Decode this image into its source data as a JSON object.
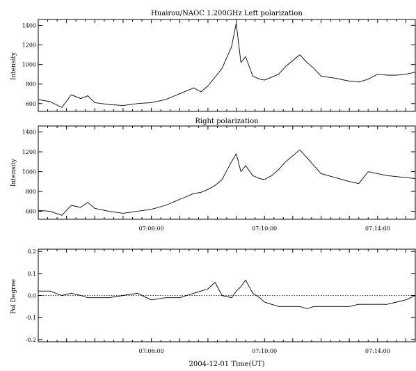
{
  "figure": {
    "title": "Huairou/NAOC  1.200GHz  Left polarization",
    "xlabel": "2004-12-01    Time(UT)"
  },
  "chart_data": [
    {
      "type": "line",
      "title": "Huairou/NAOC  1.200GHz  Left polarization",
      "ylabel": "Intensity",
      "xlim": [
        "07:02:00",
        "07:15:20"
      ],
      "ylim": [
        520,
        1460
      ],
      "yticks": [
        600,
        800,
        1000,
        1200,
        1400
      ],
      "xticks": [],
      "grid": false,
      "series": [
        {
          "x": [
            "07:02:00",
            "07:02:25",
            "07:02:50",
            "07:03:10",
            "07:03:30",
            "07:03:45",
            "07:04:00",
            "07:04:30",
            "07:05:00",
            "07:05:30",
            "07:06:00",
            "07:06:30",
            "07:07:00",
            "07:07:30",
            "07:07:45",
            "07:08:00",
            "07:08:15",
            "07:08:30",
            "07:08:50",
            "07:09:00",
            "07:09:10",
            "07:09:20",
            "07:09:35",
            "07:09:50",
            "07:10:00",
            "07:10:15",
            "07:10:30",
            "07:10:45",
            "07:11:00",
            "07:11:15",
            "07:11:30",
            "07:11:45",
            "07:12:00",
            "07:12:30",
            "07:13:00",
            "07:13:20",
            "07:13:40",
            "07:14:00",
            "07:14:20",
            "07:14:40",
            "07:15:00",
            "07:15:20"
          ],
          "values": [
            640,
            620,
            560,
            690,
            650,
            680,
            610,
            590,
            580,
            600,
            610,
            640,
            700,
            760,
            720,
            780,
            870,
            960,
            1180,
            1420,
            1020,
            1080,
            880,
            850,
            840,
            870,
            900,
            980,
            1040,
            1100,
            1020,
            960,
            880,
            860,
            830,
            820,
            850,
            900,
            890,
            890,
            900,
            920
          ]
        }
      ]
    },
    {
      "type": "line",
      "title": "Right polarization",
      "ylabel": "Intensity",
      "xlim": [
        "07:02:00",
        "07:15:20"
      ],
      "ylim": [
        520,
        1460
      ],
      "yticks": [
        600,
        800,
        1000,
        1200,
        1400
      ],
      "xticks": [
        "07:06:00",
        "07:10:00",
        "07:14:00"
      ],
      "grid": false,
      "series": [
        {
          "x": [
            "07:02:00",
            "07:02:25",
            "07:02:50",
            "07:03:10",
            "07:03:30",
            "07:03:45",
            "07:04:00",
            "07:04:30",
            "07:05:00",
            "07:05:30",
            "07:06:00",
            "07:06:30",
            "07:07:00",
            "07:07:30",
            "07:07:45",
            "07:08:00",
            "07:08:15",
            "07:08:30",
            "07:08:50",
            "07:09:00",
            "07:09:10",
            "07:09:20",
            "07:09:35",
            "07:09:50",
            "07:10:00",
            "07:10:15",
            "07:10:30",
            "07:10:45",
            "07:11:00",
            "07:11:15",
            "07:11:30",
            "07:11:45",
            "07:12:00",
            "07:12:30",
            "07:13:00",
            "07:13:20",
            "07:13:40",
            "07:14:00",
            "07:14:20",
            "07:14:40",
            "07:15:00",
            "07:15:20"
          ],
          "values": [
            610,
            600,
            560,
            660,
            640,
            690,
            630,
            600,
            580,
            600,
            620,
            660,
            720,
            780,
            790,
            820,
            860,
            920,
            1100,
            1180,
            1000,
            1060,
            960,
            930,
            920,
            960,
            1020,
            1100,
            1160,
            1220,
            1140,
            1060,
            980,
            940,
            900,
            880,
            1000,
            980,
            960,
            950,
            940,
            930
          ]
        }
      ]
    },
    {
      "type": "line",
      "title": "",
      "ylabel": "Pol Degree",
      "xlim": [
        "07:02:00",
        "07:15:20"
      ],
      "ylim": [
        -0.21,
        0.21
      ],
      "yticks": [
        -0.2,
        -0.1,
        0.0,
        0.1,
        0.2
      ],
      "ytick_labels": [
        "-0.2",
        "-0.1",
        "0.0",
        "0.1",
        "0.2"
      ],
      "xticks": [
        "07:06:00",
        "07:10:00",
        "07:14:00"
      ],
      "reference_line": 0.0,
      "grid": false,
      "series": [
        {
          "x": [
            "07:02:00",
            "07:02:25",
            "07:02:50",
            "07:03:10",
            "07:03:30",
            "07:03:45",
            "07:04:00",
            "07:04:30",
            "07:05:00",
            "07:05:30",
            "07:06:00",
            "07:06:30",
            "07:07:00",
            "07:07:30",
            "07:07:45",
            "07:08:00",
            "07:08:15",
            "07:08:30",
            "07:08:50",
            "07:09:00",
            "07:09:10",
            "07:09:20",
            "07:09:35",
            "07:09:50",
            "07:10:00",
            "07:10:15",
            "07:10:30",
            "07:10:45",
            "07:11:00",
            "07:11:15",
            "07:11:30",
            "07:11:45",
            "07:12:00",
            "07:12:30",
            "07:13:00",
            "07:13:20",
            "07:13:40",
            "07:14:00",
            "07:14:20",
            "07:14:40",
            "07:15:00",
            "07:15:20"
          ],
          "values": [
            0.02,
            0.02,
            0.0,
            0.01,
            0.0,
            -0.01,
            -0.01,
            -0.01,
            0.0,
            0.01,
            -0.02,
            -0.01,
            -0.01,
            0.01,
            0.02,
            0.03,
            0.06,
            0.0,
            -0.01,
            0.02,
            0.04,
            0.07,
            0.01,
            -0.01,
            -0.03,
            -0.04,
            -0.05,
            -0.05,
            -0.05,
            -0.05,
            -0.06,
            -0.05,
            -0.05,
            -0.05,
            -0.05,
            -0.04,
            -0.04,
            -0.04,
            -0.04,
            -0.03,
            -0.02,
            0.0
          ]
        }
      ]
    }
  ]
}
